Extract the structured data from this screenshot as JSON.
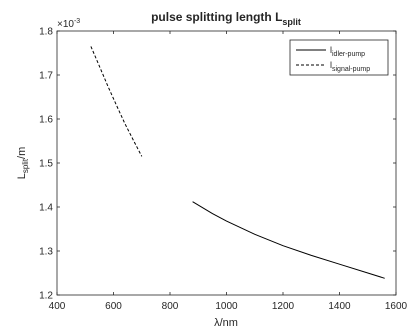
{
  "chart_data": {
    "type": "line",
    "title": "pulse splitting length L",
    "title_sub": "split",
    "xlabel": "λ/nm",
    "ylabel_main": "L",
    "ylabel_sub": "split",
    "ylabel_suffix": "/m",
    "y_multiplier_base": "×10",
    "y_multiplier_exp": "-3",
    "xlim": [
      400,
      1600
    ],
    "ylim": [
      1.2,
      1.8
    ],
    "x_ticks": [
      400,
      600,
      800,
      1000,
      1200,
      1400,
      1600
    ],
    "y_ticks": [
      1.2,
      1.3,
      1.4,
      1.5,
      1.6,
      1.7,
      1.8
    ],
    "grid": false,
    "legend_position": "top-right",
    "series": [
      {
        "name_main": "l",
        "name_sub": "idler-pump",
        "style": "solid",
        "color": "#000000",
        "x": [
          880,
          950,
          1000,
          1100,
          1200,
          1300,
          1400,
          1500,
          1560
        ],
        "y": [
          1.412,
          1.385,
          1.368,
          1.338,
          1.312,
          1.29,
          1.27,
          1.25,
          1.238
        ]
      },
      {
        "name_main": "l",
        "name_sub": "signal-pump",
        "style": "dashed",
        "color": "#000000",
        "x": [
          520,
          550,
          580,
          610,
          640,
          670,
          700
        ],
        "y": [
          1.765,
          1.72,
          1.675,
          1.632,
          1.59,
          1.552,
          1.515
        ]
      }
    ]
  }
}
